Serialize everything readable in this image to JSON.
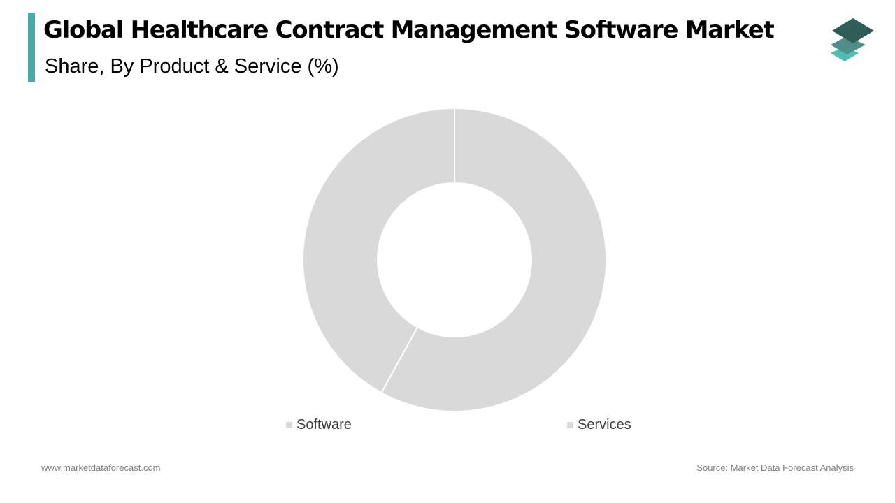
{
  "header": {
    "title": "Global Healthcare Contract Management Software Market",
    "subtitle": "Share, By Product & Service (%)"
  },
  "colors": {
    "accent": "#4aaaa5",
    "slice_fill": "#d9d9d9",
    "logo_dark": "#2e5e57",
    "logo_mid": "#4f8f88",
    "logo_light": "#4bbfb3"
  },
  "icons": {
    "logo": "stacked-layers-logo-icon"
  },
  "chart_data": {
    "type": "pie",
    "variant": "donut",
    "categories": [
      "Software",
      "Services"
    ],
    "values": [
      58,
      42
    ],
    "legend": {
      "placement": "bottom",
      "entries": [
        "Software",
        "Services"
      ]
    }
  },
  "footer": {
    "website": "www.marketdataforecast.com",
    "source": "Source: Market Data Forecast Analysis"
  }
}
